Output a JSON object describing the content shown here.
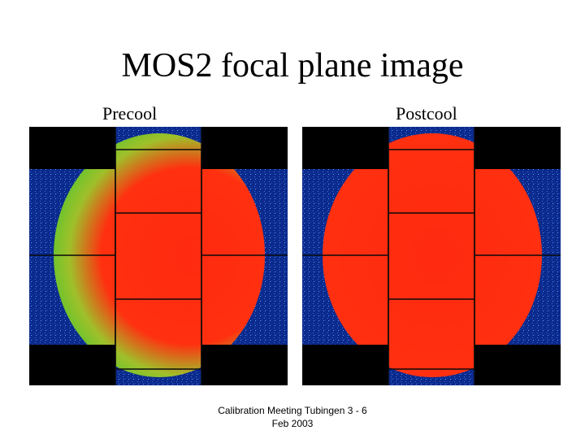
{
  "slide": {
    "title": "MOS2 focal plane image",
    "footer_line1": "Calibration Meeting Tubingen 3 - 6",
    "footer_line2": "Feb 2003"
  },
  "panels": [
    {
      "label": "Precool",
      "colors": {
        "background": "#0b2a8c",
        "edge": "#2ec830",
        "mid": "#7fbf2a",
        "core": "#ff2a10",
        "mask": "#000000"
      },
      "red_extent": 0.55
    },
    {
      "label": "Postcool",
      "colors": {
        "background": "#0b2a8c",
        "edge": "#2ec830",
        "mid": "#7fbf2a",
        "core": "#ff2a10",
        "mask": "#000000"
      },
      "red_extent": 0.85
    }
  ]
}
